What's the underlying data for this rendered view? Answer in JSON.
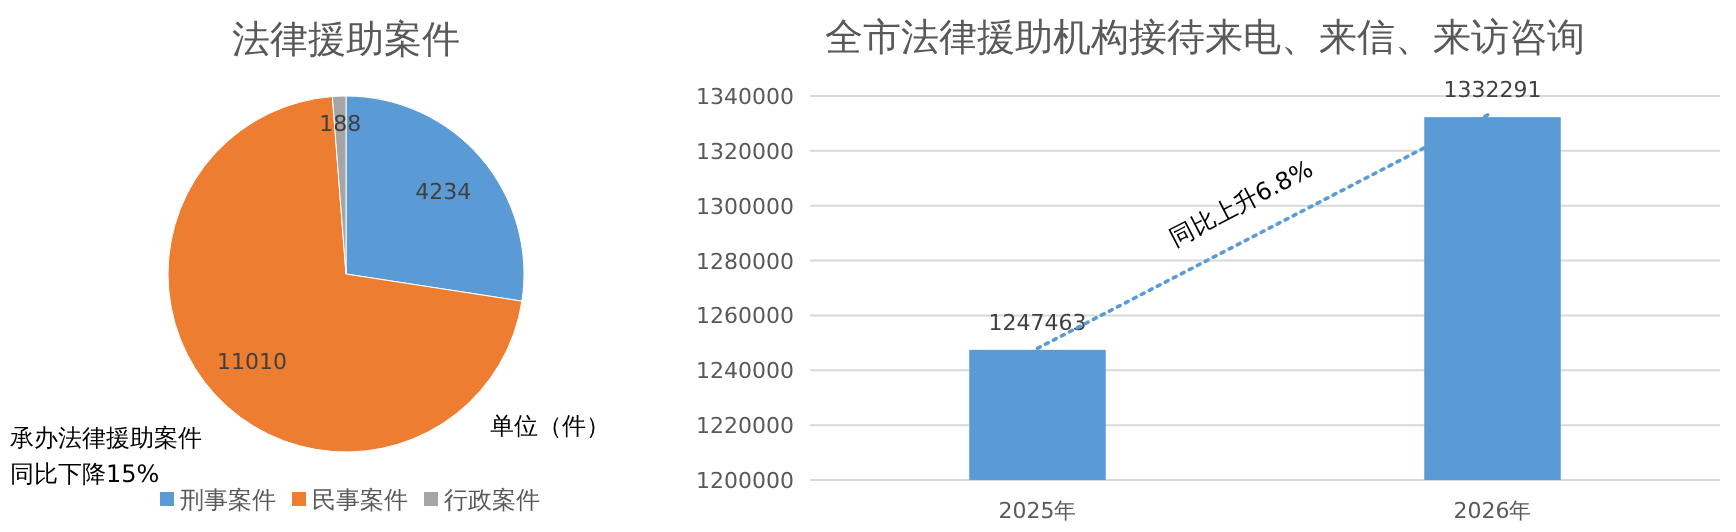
{
  "chart_data": [
    {
      "type": "pie",
      "title": "法律援助案件",
      "categories": [
        "刑事案件",
        "民事案件",
        "行政案件"
      ],
      "values": [
        4234,
        11010,
        188
      ],
      "colors": [
        "#5b9bd5",
        "#ed7d31",
        "#a5a5a5"
      ],
      "data_labels": true,
      "legend": "bottom",
      "annotations": [
        "承办法律援助案件",
        "同比下降15%",
        "单位（件）"
      ]
    },
    {
      "type": "bar",
      "title": "全市法律援助机构接待来电、来信、来访咨询",
      "categories": [
        "2025年",
        "2026年"
      ],
      "series": [
        {
          "type": "bar",
          "color": "#5b9bd5",
          "values": [
            1247463,
            1332291
          ],
          "value_labels": [
            "1247463",
            "1332291"
          ]
        },
        {
          "type": "line",
          "color": "#5b9bd5",
          "line_style": "dotted",
          "marker": "none",
          "values": [
            1248000,
            1334000
          ]
        }
      ],
      "ylim": [
        1200000,
        1340000
      ],
      "yticks": [
        1200000,
        1220000,
        1240000,
        1260000,
        1280000,
        1300000,
        1320000,
        1340000
      ],
      "grid": "y",
      "annotations": [
        "同比上升6.8%"
      ]
    }
  ]
}
